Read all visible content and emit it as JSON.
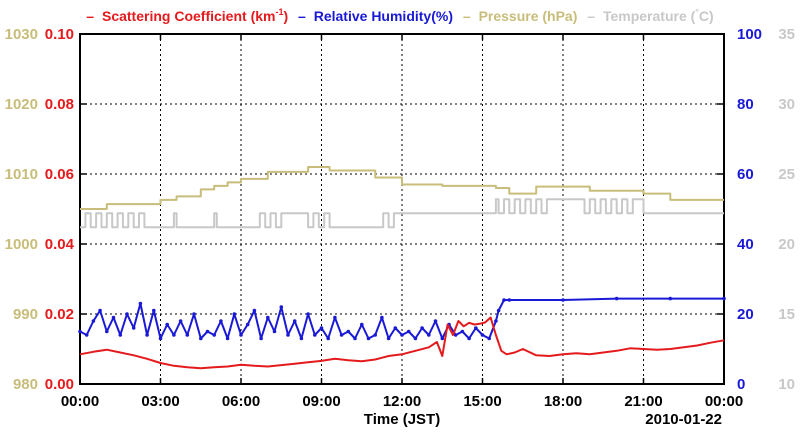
{
  "chart_data": {
    "type": "line",
    "date_label": "2010-01-22",
    "xlabel": "Time (JST)",
    "x_ticks": [
      "00:00",
      "03:00",
      "06:00",
      "09:00",
      "12:00",
      "15:00",
      "18:00",
      "21:00",
      "00:00"
    ],
    "x_range_hours": [
      0,
      24
    ],
    "legend": [
      {
        "dash": "–",
        "text": "Scattering Coefficient (km",
        "sup": "-1",
        "after": ")",
        "color": "#e41a1c"
      },
      {
        "dash": "–",
        "text": "Relative Humidity(%)",
        "sup": "",
        "after": "",
        "color": "#1a1ad6"
      },
      {
        "dash": "–",
        "text": "Pressure (hPa)",
        "sup": "",
        "after": "",
        "color": "#c8bd7a"
      },
      {
        "dash": "–",
        "text": "Temperature (",
        "sup": "°",
        "after": "C)",
        "color": "#c8c8c8"
      }
    ],
    "axes": {
      "pressure": {
        "range": [
          980,
          1030
        ],
        "ticks": [
          "980",
          "990",
          "1000",
          "1010",
          "1020",
          "1030"
        ],
        "color": "#c8bd7a"
      },
      "scattering": {
        "range": [
          0,
          0.1
        ],
        "ticks": [
          "0.00",
          "0.02",
          "0.04",
          "0.06",
          "0.08",
          "0.10"
        ],
        "color": "#e41a1c"
      },
      "humidity": {
        "range": [
          0,
          100
        ],
        "ticks": [
          "0",
          "20",
          "40",
          "60",
          "80",
          "100"
        ],
        "color": "#1a1ad6"
      },
      "temperature": {
        "range": [
          10,
          35
        ],
        "ticks": [
          "10",
          "15",
          "20",
          "25",
          "30",
          "35"
        ],
        "color": "#c8c8c8"
      }
    },
    "series": [
      {
        "name": "Pressure (hPa)",
        "axis": "pressure",
        "color": "#c8bd7a",
        "step": true,
        "x": [
          0,
          0.5,
          1.0,
          3.0,
          3.6,
          4.5,
          5.0,
          5.5,
          6.0,
          7.0,
          8.5,
          9.3,
          11.0,
          12.0,
          13.5,
          15.5,
          16.0,
          17.0,
          19.0,
          21.0,
          22.0,
          24.0
        ],
        "values": [
          1005.0,
          1005.0,
          1005.7,
          1006.3,
          1006.8,
          1007.8,
          1008.3,
          1008.8,
          1009.3,
          1010.3,
          1011.0,
          1010.5,
          1009.5,
          1008.5,
          1008.3,
          1008.0,
          1007.2,
          1008.2,
          1007.6,
          1007.2,
          1006.3,
          1006.3
        ]
      },
      {
        "name": "Temperature (C)",
        "axis": "temperature",
        "color": "#c8c8c8",
        "step": true,
        "x": [
          0,
          0.2,
          0.4,
          0.6,
          0.8,
          1.0,
          1.2,
          1.4,
          1.6,
          1.8,
          2.0,
          2.2,
          2.4,
          2.6,
          3.5,
          3.6,
          3.7,
          5.0,
          5.1,
          5.2,
          6.7,
          6.9,
          7.1,
          7.3,
          7.5,
          8.5,
          8.7,
          8.9,
          9.1,
          9.3,
          11.3,
          11.5,
          11.7,
          13.0,
          15.5,
          15.6,
          15.8,
          16.0,
          16.2,
          16.4,
          16.6,
          16.8,
          17.0,
          17.2,
          17.4,
          17.6,
          18.8,
          19.0,
          19.2,
          19.4,
          19.6,
          19.8,
          20.0,
          20.2,
          20.4,
          20.6,
          21.0,
          21.2,
          24.0
        ],
        "values": [
          21.2,
          22.2,
          21.2,
          22.2,
          21.2,
          22.2,
          21.2,
          22.2,
          21.2,
          22.2,
          21.2,
          22.2,
          21.2,
          21.2,
          22.2,
          21.2,
          21.2,
          22.2,
          21.2,
          21.2,
          22.2,
          21.2,
          22.2,
          21.2,
          22.2,
          21.2,
          22.2,
          21.2,
          22.2,
          21.2,
          22.2,
          21.2,
          22.2,
          22.2,
          23.2,
          22.2,
          23.2,
          22.2,
          23.2,
          22.2,
          23.2,
          22.2,
          23.2,
          22.2,
          23.2,
          23.2,
          22.2,
          23.2,
          22.2,
          23.2,
          22.2,
          23.2,
          22.2,
          23.2,
          22.2,
          23.2,
          22.2,
          22.2,
          22.2
        ]
      },
      {
        "name": "Relative Humidity(%)",
        "axis": "humidity",
        "color": "#1a1ad6",
        "step": false,
        "markers": true,
        "x": [
          0,
          0.25,
          0.5,
          0.75,
          1.0,
          1.25,
          1.5,
          1.75,
          2.0,
          2.25,
          2.5,
          2.75,
          3.0,
          3.25,
          3.5,
          3.75,
          4.0,
          4.25,
          4.5,
          4.75,
          5.0,
          5.25,
          5.5,
          5.75,
          6.0,
          6.25,
          6.5,
          6.75,
          7.0,
          7.25,
          7.5,
          7.75,
          8.0,
          8.25,
          8.5,
          8.75,
          9.0,
          9.25,
          9.5,
          9.75,
          10.0,
          10.25,
          10.5,
          10.75,
          11.0,
          11.25,
          11.5,
          11.75,
          12.0,
          12.25,
          12.5,
          12.75,
          13.0,
          13.25,
          13.5,
          13.75,
          14.0,
          14.25,
          14.5,
          14.75,
          15.0,
          15.25,
          15.5,
          15.6,
          15.8,
          16.0,
          18.0,
          20.0,
          22.0,
          24.0
        ],
        "values": [
          15,
          14,
          18,
          21,
          15,
          19,
          14,
          20,
          16,
          23,
          14,
          21,
          13,
          17,
          14,
          18,
          14,
          20,
          13,
          15,
          14,
          18,
          13,
          20,
          14,
          17,
          21,
          13,
          19,
          15,
          22,
          14,
          18,
          13,
          20,
          14,
          16,
          13,
          19,
          14,
          15,
          13,
          17,
          13,
          14,
          19,
          13,
          16,
          14,
          15,
          13,
          16,
          14,
          18,
          13,
          17,
          14,
          15,
          13,
          16,
          14,
          13,
          18,
          21,
          24,
          24,
          24,
          24.4,
          24.4,
          24.4
        ]
      },
      {
        "name": "Scattering Coefficient (km-1)",
        "axis": "scattering",
        "color": "#e41a1c",
        "step": false,
        "x": [
          0,
          0.5,
          1.0,
          1.5,
          2.0,
          2.5,
          3.0,
          3.5,
          4.0,
          4.5,
          5.0,
          5.5,
          6.0,
          6.5,
          7.0,
          7.5,
          8.0,
          8.5,
          9.0,
          9.5,
          10.0,
          10.5,
          11.0,
          11.5,
          12.0,
          12.5,
          13.0,
          13.3,
          13.5,
          13.7,
          13.9,
          14.1,
          14.3,
          14.5,
          14.7,
          14.9,
          15.1,
          15.3,
          15.5,
          15.7,
          15.9,
          16.2,
          16.5,
          17.0,
          17.5,
          18.0,
          18.5,
          19.0,
          19.5,
          20.0,
          20.5,
          21.0,
          21.5,
          22.0,
          22.5,
          23.0,
          23.5,
          24.0
        ],
        "values": [
          0.0085,
          0.0092,
          0.0098,
          0.009,
          0.0082,
          0.0072,
          0.006,
          0.0052,
          0.0048,
          0.0045,
          0.0048,
          0.005,
          0.0055,
          0.0052,
          0.005,
          0.0054,
          0.0058,
          0.0062,
          0.0066,
          0.0072,
          0.0068,
          0.0065,
          0.007,
          0.008,
          0.0085,
          0.0095,
          0.0105,
          0.012,
          0.008,
          0.017,
          0.014,
          0.018,
          0.0165,
          0.0175,
          0.017,
          0.0172,
          0.0176,
          0.019,
          0.014,
          0.0095,
          0.0085,
          0.009,
          0.01,
          0.0082,
          0.008,
          0.0085,
          0.0088,
          0.0085,
          0.009,
          0.0095,
          0.0102,
          0.01,
          0.0098,
          0.01,
          0.0105,
          0.011,
          0.0118,
          0.0125
        ]
      }
    ]
  }
}
